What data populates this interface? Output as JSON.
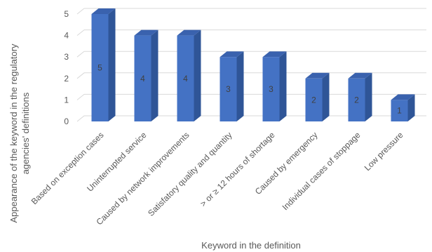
{
  "chart_data": {
    "type": "bar",
    "style": "3d-column",
    "xlabel": "Keyword in the definition",
    "ylabel": "Appearance of the keyword in the regulatory agencies' definitions",
    "ylabel_lines": [
      "Appearance of the keyword in the regulatory",
      "agencies' definitions"
    ],
    "ylim": [
      0,
      5
    ],
    "yticks": [
      0,
      1,
      2,
      3,
      4,
      5
    ],
    "grid": true,
    "legend": "none",
    "categories": [
      "Based on exception cases",
      "Uninterrupted service",
      "Caused by network improvements",
      "Satisfatory quality and quantity",
      "> or ≥ 12 hours of shortage",
      "Caused by emergency",
      "Individual cases of stoppage",
      "Low pressure"
    ],
    "values": [
      5,
      4,
      4,
      3,
      3,
      2,
      2,
      1
    ],
    "data_labels": [
      "5",
      "4",
      "4",
      "3",
      "3",
      "2",
      "2",
      "1"
    ],
    "colors": {
      "front": "#4472C4",
      "side": "#2F5597",
      "top": "#3A62AE",
      "grid": "#D9D9D9"
    }
  }
}
